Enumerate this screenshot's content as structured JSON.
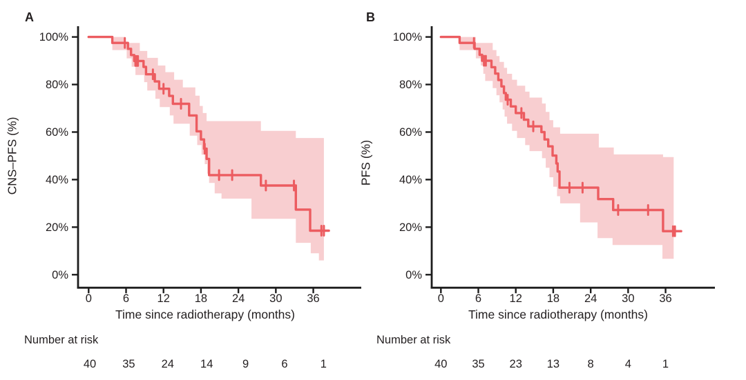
{
  "figure": {
    "panels": [
      {
        "letter": "A",
        "y_axis_label": "CNS–PFS (%)",
        "x_axis_label": "Time since radiotherapy (months)",
        "risk_header": "Number at risk"
      },
      {
        "letter": "B",
        "y_axis_label": "PFS (%)",
        "x_axis_label": "Time since radiotherapy (months)",
        "risk_header": "Number at risk"
      }
    ],
    "colors": {
      "line": "#ec5c60",
      "band": "#f8ced0",
      "axis": "#1c1c1c",
      "text": "#231f20"
    }
  },
  "chart_data": [
    {
      "type": "line",
      "subtype": "kaplan-meier-step-curve-with-confidence-band",
      "panel": "A",
      "title": "A",
      "xlabel": "Time since radiotherapy (months)",
      "ylabel": "CNS–PFS (%)",
      "xlim": [
        0,
        39.5
      ],
      "ylim": [
        0,
        100
      ],
      "x_ticks": [
        0,
        6,
        12,
        18,
        24,
        30,
        36
      ],
      "y_ticks": [
        0,
        20,
        40,
        60,
        80,
        100
      ],
      "y_tick_suffix": "%",
      "grid": false,
      "legend": "none",
      "steps": [
        [
          0,
          100
        ],
        [
          3.8,
          97.5
        ],
        [
          6.3,
          95
        ],
        [
          6.8,
          92.4
        ],
        [
          7.3,
          89.9
        ],
        [
          8.8,
          87.4
        ],
        [
          9.2,
          84.3
        ],
        [
          10.6,
          81.3
        ],
        [
          11.3,
          78.2
        ],
        [
          12.9,
          75.2
        ],
        [
          13.5,
          71.9
        ],
        [
          16.1,
          67
        ],
        [
          17.3,
          60.3
        ],
        [
          18,
          56.9
        ],
        [
          18.5,
          53
        ],
        [
          18.9,
          48.7
        ],
        [
          19.3,
          41.9
        ],
        [
          27.6,
          37.5
        ],
        [
          33.2,
          27.4
        ],
        [
          35.5,
          18.5
        ]
      ],
      "end_time": 38.5,
      "censor_marks": [
        [
          5.8,
          97.5
        ],
        [
          7.5,
          89.9
        ],
        [
          7.7,
          89.9
        ],
        [
          7.9,
          89.9
        ],
        [
          10.3,
          84.3
        ],
        [
          12,
          78.2
        ],
        [
          14.8,
          71.9
        ],
        [
          18.6,
          53
        ],
        [
          20.9,
          41.9
        ],
        [
          23,
          41.9
        ],
        [
          28.4,
          37.5
        ],
        [
          32.9,
          37.5
        ],
        [
          37.3,
          18.5
        ],
        [
          37.7,
          18.5
        ]
      ],
      "ci_upper": [
        [
          3.8,
          100
        ],
        [
          5.9,
          97.5
        ],
        [
          8.2,
          94.1
        ],
        [
          9.4,
          91.2
        ],
        [
          11.1,
          88
        ],
        [
          12.3,
          85.2
        ],
        [
          13.7,
          82
        ],
        [
          15.1,
          78.8
        ],
        [
          17.1,
          75.3
        ],
        [
          17.8,
          71
        ],
        [
          18.3,
          68
        ],
        [
          18.9,
          64.6
        ],
        [
          27.6,
          60.5
        ],
        [
          33.2,
          57.5
        ]
      ],
      "ci_lower": [
        [
          3.8,
          94.5
        ],
        [
          6.1,
          91
        ],
        [
          6.9,
          87.5
        ],
        [
          7.5,
          84
        ],
        [
          8.9,
          81
        ],
        [
          9.4,
          77.5
        ],
        [
          10.7,
          74
        ],
        [
          11.4,
          70.5
        ],
        [
          13,
          67
        ],
        [
          13.6,
          63.5
        ],
        [
          16.2,
          58.5
        ],
        [
          17.4,
          54.5
        ],
        [
          18.1,
          50.5
        ],
        [
          18.6,
          46.5
        ],
        [
          19,
          42.5
        ],
        [
          19.3,
          38.6
        ],
        [
          20.2,
          34.2
        ],
        [
          21.3,
          32
        ],
        [
          26.1,
          23.5
        ],
        [
          33.2,
          13.4
        ],
        [
          35.6,
          9
        ],
        [
          36.9,
          6
        ]
      ],
      "ci_end_time": 37.7,
      "number_at_risk": {
        "label": "Number at risk",
        "times": [
          0,
          6,
          12,
          18,
          24,
          30,
          36
        ],
        "values": [
          40,
          35,
          24,
          14,
          9,
          6,
          1
        ]
      }
    },
    {
      "type": "line",
      "subtype": "kaplan-meier-step-curve-with-confidence-band",
      "panel": "B",
      "title": "B",
      "xlabel": "Time since radiotherapy (months)",
      "ylabel": "PFS (%)",
      "xlim": [
        0,
        39.5
      ],
      "ylim": [
        0,
        100
      ],
      "x_ticks": [
        0,
        6,
        12,
        18,
        24,
        30,
        36
      ],
      "y_ticks": [
        0,
        20,
        40,
        60,
        80,
        100
      ],
      "y_tick_suffix": "%",
      "grid": false,
      "legend": "none",
      "steps": [
        [
          0,
          100
        ],
        [
          3,
          97.5
        ],
        [
          5.4,
          95
        ],
        [
          6.2,
          92.5
        ],
        [
          6.6,
          90
        ],
        [
          8.1,
          87.3
        ],
        [
          8.7,
          84.6
        ],
        [
          9.2,
          81.9
        ],
        [
          9.7,
          79.2
        ],
        [
          10.1,
          76.4
        ],
        [
          10.4,
          73.6
        ],
        [
          11.2,
          70.8
        ],
        [
          12,
          68
        ],
        [
          13.3,
          65.2
        ],
        [
          14,
          62.4
        ],
        [
          16.1,
          60
        ],
        [
          16.6,
          56.9
        ],
        [
          17.2,
          54
        ],
        [
          17.9,
          50.1
        ],
        [
          18.5,
          46.8
        ],
        [
          18.7,
          43.4
        ],
        [
          19,
          36.6
        ],
        [
          25.2,
          31.8
        ],
        [
          27.6,
          27.2
        ],
        [
          35.6,
          18.3
        ]
      ],
      "end_time": 38.5,
      "censor_marks": [
        [
          5.3,
          97.5
        ],
        [
          6.9,
          90
        ],
        [
          7.2,
          90
        ],
        [
          10.7,
          73.6
        ],
        [
          12.9,
          68
        ],
        [
          14.8,
          62.4
        ],
        [
          20.6,
          36.6
        ],
        [
          22.7,
          36.6
        ],
        [
          28.4,
          27.2
        ],
        [
          33.2,
          27.2
        ],
        [
          37.2,
          18.3
        ],
        [
          37.5,
          18.3
        ]
      ],
      "ci_upper": [
        [
          3,
          100
        ],
        [
          5.6,
          97.5
        ],
        [
          8.3,
          94.5
        ],
        [
          8.9,
          92
        ],
        [
          9.4,
          89.5
        ],
        [
          10.1,
          87
        ],
        [
          10.6,
          84.5
        ],
        [
          11.4,
          82
        ],
        [
          12.2,
          79.5
        ],
        [
          13.5,
          77
        ],
        [
          14.2,
          74.5
        ],
        [
          16.2,
          72
        ],
        [
          16.8,
          68.5
        ],
        [
          17.4,
          65
        ],
        [
          18,
          62
        ],
        [
          19.1,
          59.3
        ],
        [
          25.3,
          53.5
        ],
        [
          27.7,
          50.6
        ],
        [
          35.6,
          49.5
        ]
      ],
      "ci_lower": [
        [
          3,
          94.5
        ],
        [
          5.6,
          91
        ],
        [
          6.4,
          88
        ],
        [
          6.8,
          84.5
        ],
        [
          7.1,
          81.5
        ],
        [
          8.3,
          78.5
        ],
        [
          8.9,
          75.5
        ],
        [
          9.4,
          72.5
        ],
        [
          9.9,
          69.5
        ],
        [
          10.2,
          66.5
        ],
        [
          10.6,
          63.5
        ],
        [
          11.4,
          60.5
        ],
        [
          12.2,
          57.5
        ],
        [
          13.5,
          54.5
        ],
        [
          14.2,
          52
        ],
        [
          16.2,
          49
        ],
        [
          16.8,
          45
        ],
        [
          17.4,
          41
        ],
        [
          18,
          37
        ],
        [
          18.6,
          33
        ],
        [
          19.1,
          30
        ],
        [
          22.3,
          22
        ],
        [
          25.1,
          15.4
        ],
        [
          27.5,
          12.5
        ],
        [
          35.5,
          6.7
        ]
      ],
      "ci_end_time": 37.3,
      "number_at_risk": {
        "label": "Number at risk",
        "times": [
          0,
          6,
          12,
          18,
          24,
          30,
          36
        ],
        "values": [
          40,
          35,
          23,
          13,
          8,
          4,
          1
        ]
      }
    }
  ]
}
